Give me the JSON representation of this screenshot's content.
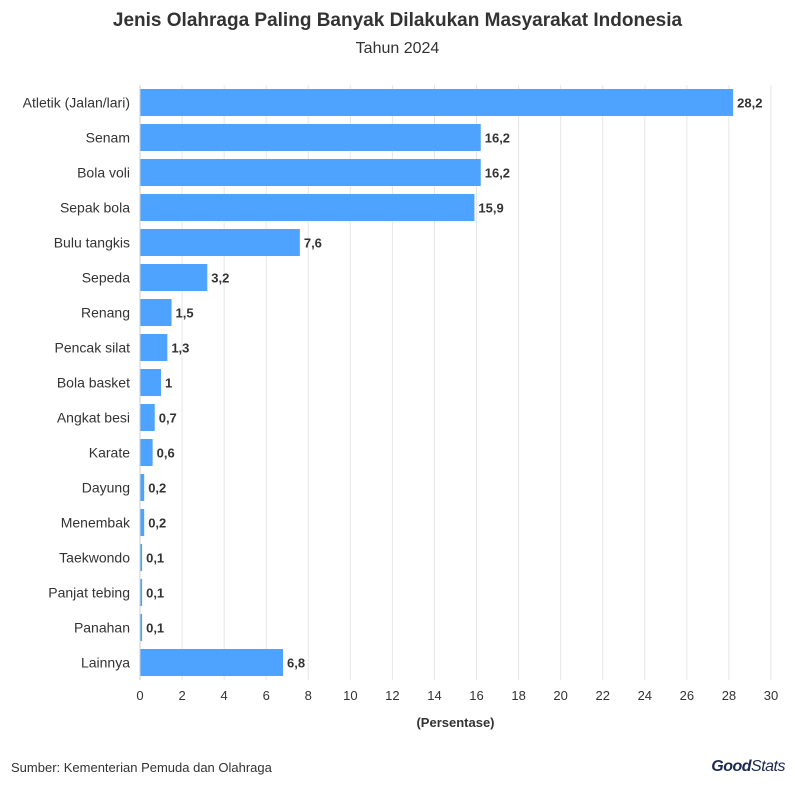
{
  "chart_data": {
    "type": "bar",
    "orientation": "horizontal",
    "title": "Jenis Olahraga Paling Banyak Dilakukan Masyarakat Indonesia",
    "subtitle": "Tahun 2024",
    "xlabel": "(Persentase)",
    "ylabel": "",
    "categories": [
      "Atletik (Jalan/lari)",
      "Senam",
      "Bola voli",
      "Sepak bola",
      "Bulu tangkis",
      "Sepeda",
      "Renang",
      "Pencak silat",
      "Bola basket",
      "Angkat besi",
      "Karate",
      "Dayung",
      "Menembak",
      "Taekwondo",
      "Panjat tebing",
      "Panahan",
      "Lainnya"
    ],
    "values": [
      28.2,
      16.2,
      16.2,
      15.9,
      7.6,
      3.2,
      1.5,
      1.3,
      1,
      0.7,
      0.6,
      0.2,
      0.2,
      0.1,
      0.1,
      0.1,
      6.8
    ],
    "value_labels": [
      "28,2",
      "16,2",
      "16,2",
      "15,9",
      "7,6",
      "3,2",
      "1,5",
      "1,3",
      "1",
      "0,7",
      "0,6",
      "0,2",
      "0,2",
      "0,1",
      "0,1",
      "0,1",
      "6,8"
    ],
    "xlim": [
      0,
      30
    ],
    "xticks": [
      0,
      2,
      4,
      6,
      8,
      10,
      12,
      14,
      16,
      18,
      20,
      22,
      24,
      26,
      28,
      30
    ],
    "grid": true,
    "bar_color": "#4da3ff",
    "grid_color": "#e6e6e6"
  },
  "source": "Sumber: Kementerian Pemuda dan Olahraga",
  "logo": {
    "good": "Good",
    "stats": "Stats"
  }
}
